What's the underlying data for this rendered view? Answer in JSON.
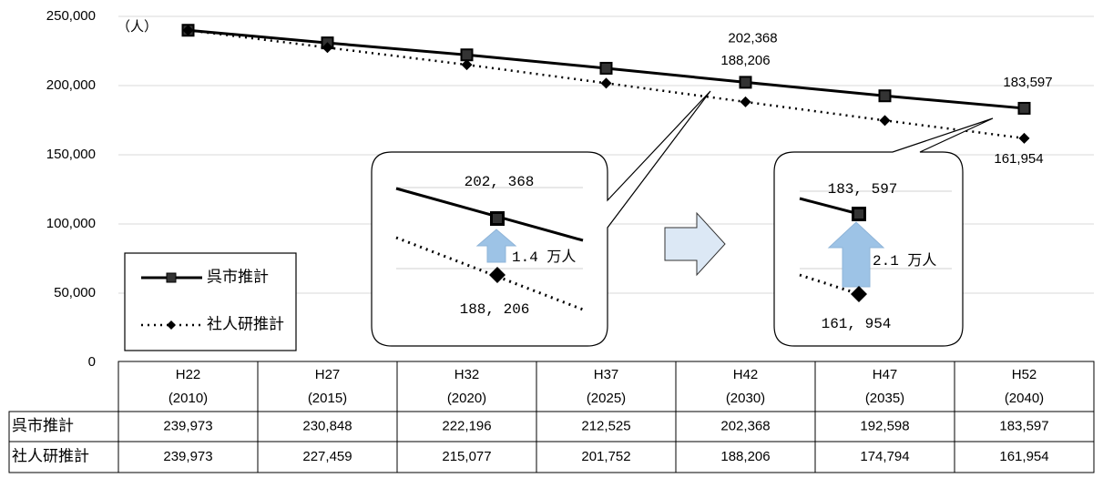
{
  "chart_data": {
    "type": "line",
    "unit_label": "（人）",
    "categories": [
      "H22",
      "H27",
      "H32",
      "H37",
      "H42",
      "H47",
      "H52"
    ],
    "categories_sub": [
      "(2010)",
      "(2015)",
      "(2020)",
      "(2025)",
      "(2030)",
      "(2035)",
      "(2040)"
    ],
    "series": [
      {
        "name": "呉市推計",
        "color": "#000000",
        "marker": "square",
        "style": "solid",
        "values": [
          239973,
          230848,
          222196,
          212525,
          202368,
          192598,
          183597
        ],
        "value_labels": [
          "239,973",
          "230,848",
          "222,196",
          "212,525",
          "202,368",
          "192,598",
          "183,597"
        ]
      },
      {
        "name": "社人研推計",
        "color": "#000000",
        "marker": "diamond",
        "style": "dotted",
        "values": [
          239973,
          227459,
          215077,
          201752,
          188206,
          174794,
          161954
        ],
        "value_labels": [
          "239,973",
          "227,459",
          "215,077",
          "201,752",
          "188,206",
          "174,794",
          "161,954"
        ]
      }
    ],
    "ylim": [
      0,
      250000
    ],
    "yticks": [
      0,
      {
        "value": 50000,
        "label": "50,000"
      },
      {
        "value": 100000,
        "label": "100,000"
      },
      {
        "value": 150000,
        "label": "150,000"
      },
      {
        "value": 200000,
        "label": "200,000"
      },
      {
        "value": 250000,
        "label": "250,000"
      }
    ],
    "grid": true,
    "legend": "lower left",
    "insets": [
      {
        "upper": "202, 368",
        "gap": "1.4 万人",
        "lower": "188, 206"
      },
      {
        "upper": "183, 597",
        "gap": "2.1 万人",
        "lower": "161, 954"
      }
    ]
  }
}
